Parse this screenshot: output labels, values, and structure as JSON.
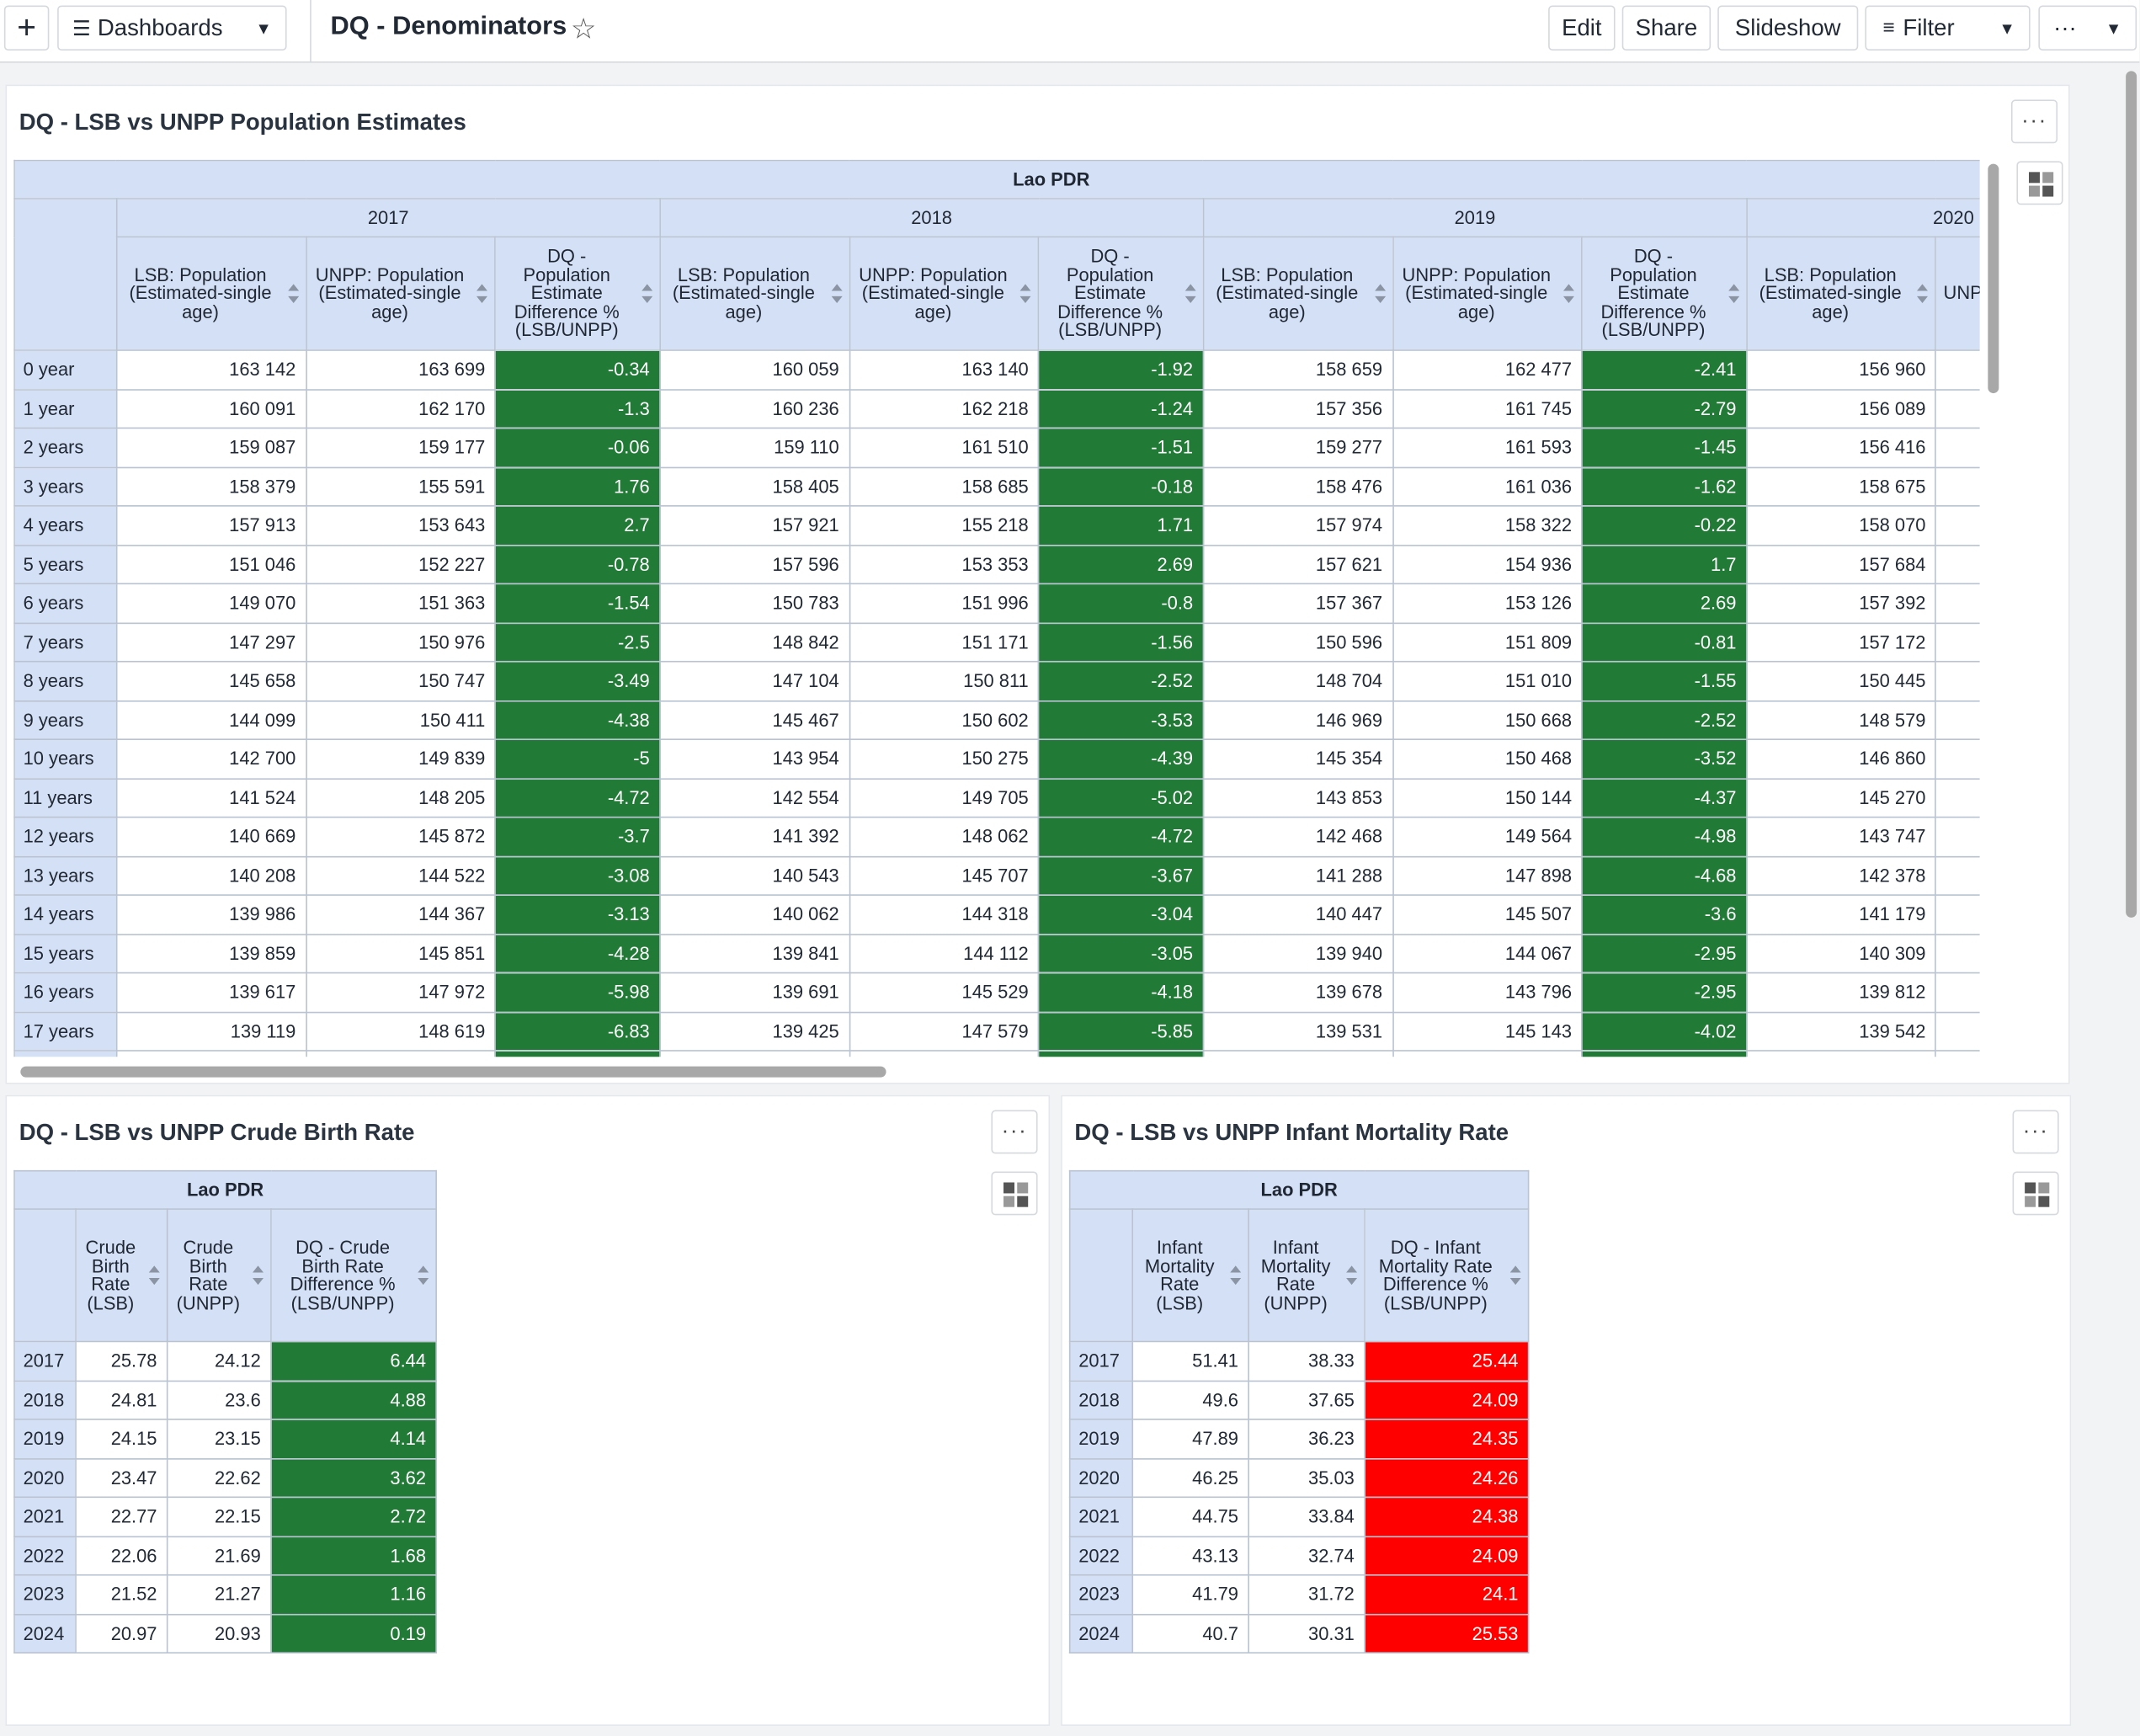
{
  "topbar": {
    "add_icon": "plus-icon",
    "dashboards_label": "Dashboards",
    "title": "DQ - Denominators",
    "edit_label": "Edit",
    "share_label": "Share",
    "slideshow_label": "Slideshow",
    "filter_label": "Filter",
    "more_label": "···"
  },
  "pop_panel": {
    "title": "DQ - LSB vs UNPP Population Estimates",
    "menu_label": "···",
    "region": "Lao PDR",
    "years": [
      "2017",
      "2018",
      "2019",
      "2020"
    ],
    "col_lsb": "LSB: Population (Estimated-single age)",
    "col_unpp": "UNPP: Population (Estimated-single age)",
    "col_dq": "DQ - Population Estimate Difference % (LSB/UNPP)",
    "col_unpp_partial": "UNPP: (Estim",
    "rows": [
      {
        "label": "0 year",
        "v": [
          "163 142",
          "163 699",
          "-0.34",
          "160 059",
          "163 140",
          "-1.92",
          "158 659",
          "162 477",
          "-2.41",
          "156 960"
        ]
      },
      {
        "label": "1 year",
        "v": [
          "160 091",
          "162 170",
          "-1.3",
          "160 236",
          "162 218",
          "-1.24",
          "157 356",
          "161 745",
          "-2.79",
          "156 089"
        ]
      },
      {
        "label": "2 years",
        "v": [
          "159 087",
          "159 177",
          "-0.06",
          "159 110",
          "161 510",
          "-1.51",
          "159 277",
          "161 593",
          "-1.45",
          "156 416"
        ]
      },
      {
        "label": "3 years",
        "v": [
          "158 379",
          "155 591",
          "1.76",
          "158 405",
          "158 685",
          "-0.18",
          "158 476",
          "161 036",
          "-1.62",
          "158 675"
        ]
      },
      {
        "label": "4 years",
        "v": [
          "157 913",
          "153 643",
          "2.7",
          "157 921",
          "155 218",
          "1.71",
          "157 974",
          "158 322",
          "-0.22",
          "158 070"
        ]
      },
      {
        "label": "5 years",
        "v": [
          "151 046",
          "152 227",
          "-0.78",
          "157 596",
          "153 353",
          "2.69",
          "157 621",
          "154 936",
          "1.7",
          "157 684"
        ]
      },
      {
        "label": "6 years",
        "v": [
          "149 070",
          "151 363",
          "-1.54",
          "150 783",
          "151 996",
          "-0.8",
          "157 367",
          "153 126",
          "2.69",
          "157 392"
        ]
      },
      {
        "label": "7 years",
        "v": [
          "147 297",
          "150 976",
          "-2.5",
          "148 842",
          "151 171",
          "-1.56",
          "150 596",
          "151 809",
          "-0.81",
          "157 172"
        ]
      },
      {
        "label": "8 years",
        "v": [
          "145 658",
          "150 747",
          "-3.49",
          "147 104",
          "150 811",
          "-2.52",
          "148 704",
          "151 010",
          "-1.55",
          "150 445"
        ]
      },
      {
        "label": "9 years",
        "v": [
          "144 099",
          "150 411",
          "-4.38",
          "145 467",
          "150 602",
          "-3.53",
          "146 969",
          "150 668",
          "-2.52",
          "148 579"
        ]
      },
      {
        "label": "10 years",
        "v": [
          "142 700",
          "149 839",
          "-5",
          "143 954",
          "150 275",
          "-4.39",
          "145 354",
          "150 468",
          "-3.52",
          "146 860"
        ]
      },
      {
        "label": "11 years",
        "v": [
          "141 524",
          "148 205",
          "-4.72",
          "142 554",
          "149 705",
          "-5.02",
          "143 853",
          "150 144",
          "-4.37",
          "145 270"
        ]
      },
      {
        "label": "12 years",
        "v": [
          "140 669",
          "145 872",
          "-3.7",
          "141 392",
          "148 062",
          "-4.72",
          "142 468",
          "149 564",
          "-4.98",
          "143 747"
        ]
      },
      {
        "label": "13 years",
        "v": [
          "140 208",
          "144 522",
          "-3.08",
          "140 543",
          "145 707",
          "-3.67",
          "141 288",
          "147 898",
          "-4.68",
          "142 378"
        ]
      },
      {
        "label": "14 years",
        "v": [
          "139 986",
          "144 367",
          "-3.13",
          "140 062",
          "144 318",
          "-3.04",
          "140 447",
          "145 507",
          "-3.6",
          "141 179"
        ]
      },
      {
        "label": "15 years",
        "v": [
          "139 859",
          "145 851",
          "-4.28",
          "139 841",
          "144 112",
          "-3.05",
          "139 940",
          "144 067",
          "-2.95",
          "140 309"
        ]
      },
      {
        "label": "16 years",
        "v": [
          "139 617",
          "147 972",
          "-5.98",
          "139 691",
          "145 529",
          "-4.18",
          "139 678",
          "143 796",
          "-2.95",
          "139 812"
        ]
      },
      {
        "label": "17 years",
        "v": [
          "139 119",
          "148 619",
          "-6.83",
          "139 425",
          "147 579",
          "-5.85",
          "139 531",
          "145 143",
          "-4.02",
          "139 542"
        ]
      }
    ]
  },
  "cbr_panel": {
    "title": "DQ - LSB vs UNPP Crude Birth Rate",
    "menu_label": "···",
    "region": "Lao PDR",
    "cols": [
      "Crude Birth Rate (LSB)",
      "Crude Birth Rate (UNPP)",
      "DQ - Crude Birth Rate Difference % (LSB/UNPP)"
    ],
    "rows": [
      {
        "label": "2017",
        "v": [
          "25.78",
          "24.12",
          "6.44"
        ]
      },
      {
        "label": "2018",
        "v": [
          "24.81",
          "23.6",
          "4.88"
        ]
      },
      {
        "label": "2019",
        "v": [
          "24.15",
          "23.15",
          "4.14"
        ]
      },
      {
        "label": "2020",
        "v": [
          "23.47",
          "22.62",
          "3.62"
        ]
      },
      {
        "label": "2021",
        "v": [
          "22.77",
          "22.15",
          "2.72"
        ]
      },
      {
        "label": "2022",
        "v": [
          "22.06",
          "21.69",
          "1.68"
        ]
      },
      {
        "label": "2023",
        "v": [
          "21.52",
          "21.27",
          "1.16"
        ]
      },
      {
        "label": "2024",
        "v": [
          "20.97",
          "20.93",
          "0.19"
        ]
      }
    ]
  },
  "imr_panel": {
    "title": "DQ - LSB vs UNPP Infant Mortality Rate",
    "menu_label": "···",
    "region": "Lao PDR",
    "cols": [
      "Infant Mortality Rate (LSB)",
      "Infant Mortality Rate (UNPP)",
      "DQ - Infant Mortality Rate Difference % (LSB/UNPP)"
    ],
    "rows": [
      {
        "label": "2017",
        "v": [
          "51.41",
          "38.33",
          "25.44"
        ]
      },
      {
        "label": "2018",
        "v": [
          "49.6",
          "37.65",
          "24.09"
        ]
      },
      {
        "label": "2019",
        "v": [
          "47.89",
          "36.23",
          "24.35"
        ]
      },
      {
        "label": "2020",
        "v": [
          "46.25",
          "35.03",
          "24.26"
        ]
      },
      {
        "label": "2021",
        "v": [
          "44.75",
          "33.84",
          "24.38"
        ]
      },
      {
        "label": "2022",
        "v": [
          "43.13",
          "32.74",
          "24.09"
        ]
      },
      {
        "label": "2023",
        "v": [
          "41.79",
          "31.72",
          "24.1"
        ]
      },
      {
        "label": "2024",
        "v": [
          "40.7",
          "30.31",
          "25.53"
        ]
      }
    ]
  },
  "colors": {
    "good": "#217a36",
    "bad": "#ff0000",
    "header": "#d4e0f5"
  }
}
